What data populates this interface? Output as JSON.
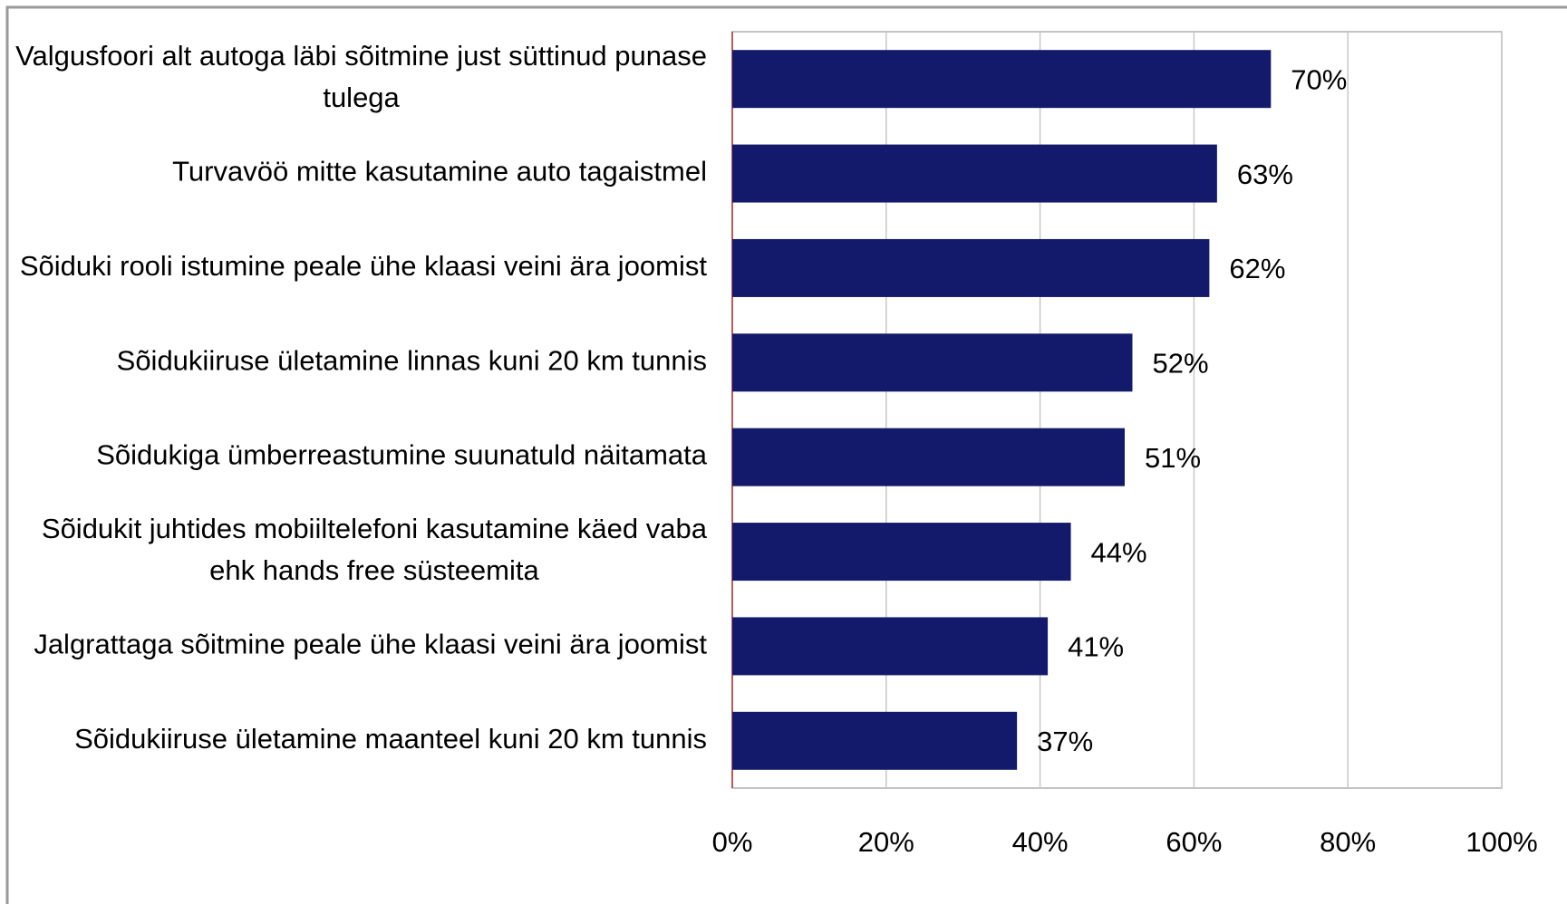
{
  "chart_data": {
    "type": "bar",
    "orientation": "horizontal",
    "categories": [
      "Valgusfoori alt autoga läbi sõitmine just süttinud punase tulega",
      "Turvavöö mitte kasutamine auto tagaistmel",
      "Sõiduki rooli istumine peale ühe klaasi veini ära joomist",
      "Sõidukiiruse ületamine linnas kuni 20 km tunnis",
      "Sõidukiga ümberreastumine suunatuld näitamata",
      "Sõidukit juhtides mobiiltelefoni kasutamine käed vaba ehk hands free süsteemita",
      "Jalgrattaga sõitmine peale ühe klaasi veini ära joomist",
      "Sõidukiiruse ületamine maanteel kuni 20 km tunnis"
    ],
    "values": [
      70,
      63,
      62,
      52,
      51,
      44,
      41,
      37
    ],
    "value_labels": [
      "70%",
      "63%",
      "62%",
      "52%",
      "51%",
      "44%",
      "41%",
      "37%"
    ],
    "color": "#141a6b",
    "xlim": [
      0,
      100
    ],
    "xticks": [
      {
        "value": 0,
        "label": "0%"
      },
      {
        "value": 20,
        "label": "20%"
      },
      {
        "value": 40,
        "label": "40%"
      },
      {
        "value": 60,
        "label": "60%"
      },
      {
        "value": 80,
        "label": "80%"
      },
      {
        "value": 100,
        "label": "100%"
      }
    ],
    "grid": true
  }
}
